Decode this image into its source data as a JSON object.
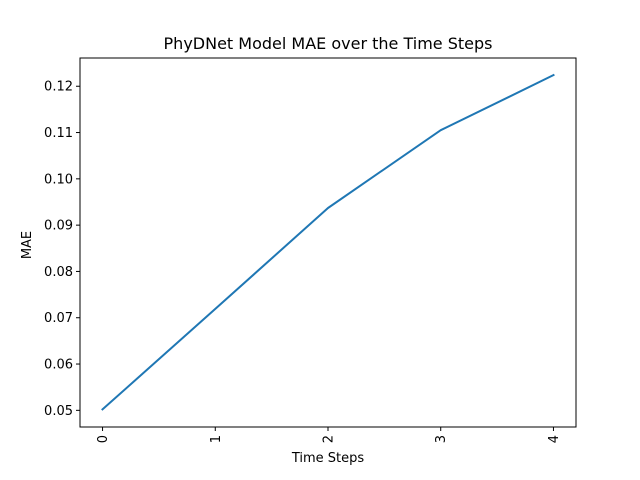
{
  "chart_data": {
    "type": "line",
    "title": "PhyDNet Model MAE over the Time Steps",
    "xlabel": "Time Steps",
    "ylabel": "MAE",
    "x": [
      0,
      1,
      2,
      3,
      4
    ],
    "x_tick_labels": [
      "0",
      "1",
      "2",
      "3",
      "4"
    ],
    "xlim": [
      -0.2,
      4.2
    ],
    "ylim": [
      0.0464,
      0.1261
    ],
    "y_ticks": [
      0.05,
      0.06,
      0.07,
      0.08,
      0.09,
      0.1,
      0.11,
      0.12
    ],
    "y_tick_labels": [
      "0.05",
      "0.06",
      "0.07",
      "0.08",
      "0.09",
      "0.10",
      "0.11",
      "0.12"
    ],
    "grid": false,
    "series": [
      {
        "name": "MAE",
        "color": "#1f77b4",
        "values": [
          0.0502,
          0.0719,
          0.0937,
          0.1105,
          0.1224
        ]
      }
    ]
  }
}
